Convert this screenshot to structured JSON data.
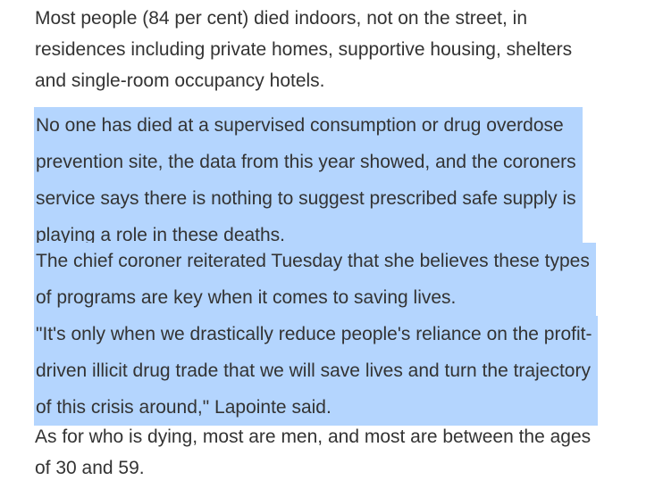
{
  "article": {
    "paragraphs": [
      {
        "selected": false,
        "lines": [
          "Most people (84 per cent) died indoors, not on the street, in",
          "residences including private homes, supportive housing, shelters",
          "and single-room occupancy hotels."
        ]
      },
      {
        "selected": true,
        "lines": [
          "No one has died at a supervised consumption or drug overdose",
          "prevention site, the data from this year showed, and the coroners",
          "service says there is nothing to suggest prescribed safe supply is",
          "playing a role in these deaths."
        ]
      },
      {
        "selected": true,
        "lines": [
          "The chief coroner reiterated Tuesday that she believes these types",
          "of programs are key when it comes to saving lives."
        ]
      },
      {
        "selected": true,
        "lines": [
          "\"It's only when we drastically reduce people's reliance on the profit-",
          "driven illicit drug trade that we will save lives and turn the trajectory",
          "of this crisis around,\" Lapointe said."
        ]
      },
      {
        "selected": false,
        "lines": [
          "As for who is dying, most are men, and most are between the ages",
          "of 30 and 59."
        ]
      }
    ]
  },
  "colors": {
    "text": "#333333",
    "selection_highlight": "#b4d5fe",
    "background": "#ffffff"
  }
}
